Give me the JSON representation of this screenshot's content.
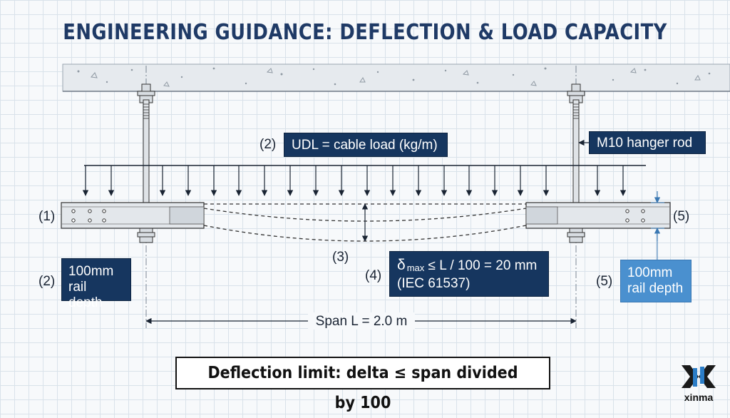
{
  "title": "ENGINEERING GUIDANCE: DEFLECTION & LOAD CAPACITY",
  "labels": {
    "udl_num": "(2)",
    "udl_text": "UDL = cable load (kg/m)",
    "hanger_text": "M10 hanger rod",
    "rail_left_num": "(1)",
    "rail_right_num": "(5)",
    "deflection_num": "(3)",
    "formula_num": "(4)",
    "formula_delta": "δ",
    "formula_sub": "max",
    "formula_rest": " ≤ L / 100 = 20 mm",
    "formula_std": "(IEC 61537)",
    "depth_left_num": "(2)",
    "depth_left_line1": "100mm",
    "depth_left_line2": "rail depth",
    "depth_right_num": "(5)",
    "depth_right_line1": "100mm",
    "depth_right_line2": "rail depth",
    "span": "Span L = 2.0 m"
  },
  "caption": "Deflection limit: delta ≤ span divided by 100",
  "logo": {
    "text": "xinma"
  },
  "colors": {
    "title": "#1f3a66",
    "box_dark": "#16365f",
    "box_light": "#4a90cf",
    "ceiling": "#e6eaee"
  }
}
